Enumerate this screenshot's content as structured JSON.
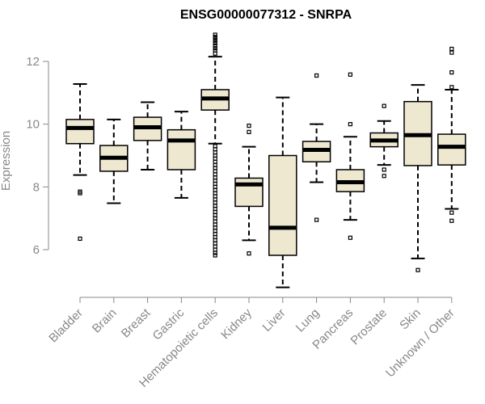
{
  "chart_data": {
    "type": "boxplot",
    "title": "ENSG00000077312 - SNRPA",
    "xlabel": "",
    "ylabel": "Expression",
    "ylim": [
      4.7,
      13.0
    ],
    "yticks": [
      6,
      8,
      10,
      12
    ],
    "grid": false,
    "legend": "none",
    "box_fill": "#eee8d0",
    "categories": [
      "Bladder",
      "Brain",
      "Breast",
      "Gastric",
      "Hematopoietic cells",
      "Kidney",
      "Liver",
      "Lung",
      "Pancreas",
      "Prostate",
      "Skin",
      "Unknown / Other"
    ],
    "boxes": [
      {
        "category": "Bladder",
        "whisker_low": 8.38,
        "q1": 9.38,
        "median": 9.88,
        "q3": 10.15,
        "whisker_high": 11.28,
        "outliers": [
          7.85,
          7.8,
          6.35
        ]
      },
      {
        "category": "Brain",
        "whisker_low": 7.48,
        "q1": 8.5,
        "median": 8.93,
        "q3": 9.32,
        "whisker_high": 10.15,
        "outliers": []
      },
      {
        "category": "Breast",
        "whisker_low": 8.55,
        "q1": 9.48,
        "median": 9.9,
        "q3": 10.22,
        "whisker_high": 10.7,
        "outliers": []
      },
      {
        "category": "Gastric",
        "whisker_low": 7.65,
        "q1": 8.55,
        "median": 9.48,
        "q3": 9.82,
        "whisker_high": 10.4,
        "outliers": []
      },
      {
        "category": "Hematopoietic cells",
        "whisker_low": 9.38,
        "q1": 10.45,
        "median": 10.82,
        "q3": 11.1,
        "whisker_high": 12.15,
        "outliers": [
          12.85,
          12.78,
          12.72,
          12.65,
          12.58,
          12.5,
          12.42,
          12.35,
          12.25,
          9.3,
          9.2,
          9.1,
          9.0,
          8.9,
          8.8,
          8.7,
          8.6,
          8.5,
          8.4,
          8.3,
          8.2,
          8.1,
          8.0,
          7.9,
          7.8,
          7.7,
          7.6,
          7.5,
          7.4,
          7.3,
          7.2,
          7.1,
          7.0,
          6.9,
          6.8,
          6.7,
          6.6,
          6.5,
          6.4,
          6.3,
          6.2,
          6.1,
          6.0,
          5.9,
          5.82
        ]
      },
      {
        "category": "Kidney",
        "whisker_low": 6.3,
        "q1": 7.38,
        "median": 8.08,
        "q3": 8.28,
        "whisker_high": 9.28,
        "outliers": [
          9.95,
          9.75,
          5.88
        ]
      },
      {
        "category": "Liver",
        "whisker_low": 4.8,
        "q1": 5.82,
        "median": 6.7,
        "q3": 9.0,
        "whisker_high": 10.85,
        "outliers": []
      },
      {
        "category": "Lung",
        "whisker_low": 8.15,
        "q1": 8.8,
        "median": 9.18,
        "q3": 9.45,
        "whisker_high": 10.0,
        "outliers": [
          11.55,
          6.95
        ]
      },
      {
        "category": "Pancreas",
        "whisker_low": 6.95,
        "q1": 7.85,
        "median": 8.15,
        "q3": 8.55,
        "whisker_high": 9.6,
        "outliers": [
          11.58,
          10.0,
          6.38
        ]
      },
      {
        "category": "Prostate",
        "whisker_low": 8.7,
        "q1": 9.28,
        "median": 9.48,
        "q3": 9.72,
        "whisker_high": 10.1,
        "outliers": [
          10.58,
          8.55,
          8.35
        ]
      },
      {
        "category": "Skin",
        "whisker_low": 5.72,
        "q1": 8.68,
        "median": 9.65,
        "q3": 10.72,
        "whisker_high": 11.25,
        "outliers": [
          5.35
        ]
      },
      {
        "category": "Unknown / Other",
        "whisker_low": 7.3,
        "q1": 8.7,
        "median": 9.28,
        "q3": 9.68,
        "whisker_high": 11.1,
        "outliers": [
          12.4,
          12.28,
          11.65,
          11.18,
          7.18,
          6.92
        ]
      }
    ]
  }
}
